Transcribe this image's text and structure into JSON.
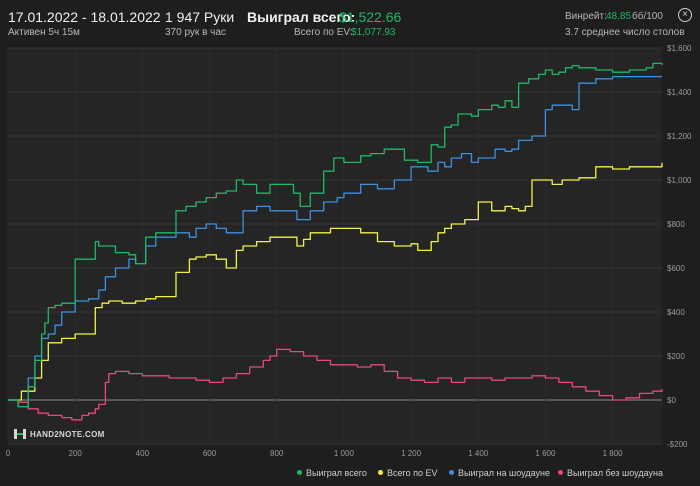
{
  "header": {
    "date_range": "17.01.2022 - 18.01.2022",
    "active": "Активен 5ч 15м",
    "hands": "1 947 Руки",
    "hands_rate": "370 рук в час",
    "won_total_label": "Выиграл всего:",
    "won_total_value": "$1,522.66",
    "ev_label": "Всего по EV:",
    "ev_value": "$1,077.93",
    "winrate_label": "Винрейт:",
    "winrate_value": "48.85",
    "winrate_unit": "бб/100",
    "tables": "3.7 среднее число столов",
    "close_icon": "close-icon"
  },
  "logo": {
    "text": "HAND2NOTE.COM"
  },
  "legend": [
    {
      "label": "Выиграл всего",
      "color": "#1fb866"
    },
    {
      "label": "Всего по EV",
      "color": "#f2f24a"
    },
    {
      "label": "Выиграл на шоудауне",
      "color": "#3d8fe0"
    },
    {
      "label": "Выиграл без шоудауна",
      "color": "#e8487a"
    }
  ],
  "chart_data": {
    "type": "line",
    "xlim": [
      0,
      1947
    ],
    "ylim": [
      -200,
      1600
    ],
    "x_ticks": [
      {
        "v": 0,
        "label": "0"
      },
      {
        "v": 200,
        "label": "200"
      },
      {
        "v": 400,
        "label": "400"
      },
      {
        "v": 600,
        "label": "600"
      },
      {
        "v": 800,
        "label": "800"
      },
      {
        "v": 1000,
        "label": "1 000"
      },
      {
        "v": 1200,
        "label": "1 200"
      },
      {
        "v": 1400,
        "label": "1 400"
      },
      {
        "v": 1600,
        "label": "1 600"
      },
      {
        "v": 1800,
        "label": "1 800"
      }
    ],
    "y_ticks": [
      {
        "v": -200,
        "label": "-$200"
      },
      {
        "v": 0,
        "label": "$0"
      },
      {
        "v": 200,
        "label": "$200"
      },
      {
        "v": 400,
        "label": "$400"
      },
      {
        "v": 600,
        "label": "$600"
      },
      {
        "v": 800,
        "label": "$800"
      },
      {
        "v": 1000,
        "label": "$1,000"
      },
      {
        "v": 1200,
        "label": "$1,200"
      },
      {
        "v": 1400,
        "label": "$1,400"
      },
      {
        "v": 1600,
        "label": "$1,600"
      }
    ],
    "series": [
      {
        "name": "Выиграл всего",
        "color": "#1fb866",
        "x": [
          0,
          30,
          60,
          80,
          100,
          110,
          120,
          140,
          160,
          200,
          240,
          260,
          270,
          290,
          320,
          360,
          380,
          410,
          440,
          500,
          530,
          560,
          590,
          620,
          650,
          680,
          700,
          740,
          780,
          820,
          850,
          870,
          900,
          940,
          970,
          1000,
          1050,
          1080,
          1120,
          1180,
          1220,
          1260,
          1280,
          1300,
          1320,
          1340,
          1380,
          1400,
          1420,
          1440,
          1460,
          1480,
          1500,
          1520,
          1550,
          1580,
          1600,
          1620,
          1640,
          1660,
          1680,
          1700,
          1750,
          1800,
          1850,
          1900,
          1920,
          1947
        ],
        "y": [
          0,
          -30,
          60,
          180,
          300,
          350,
          420,
          430,
          440,
          640,
          640,
          720,
          700,
          700,
          670,
          660,
          620,
          740,
          760,
          860,
          880,
          900,
          920,
          940,
          950,
          1000,
          980,
          940,
          980,
          980,
          940,
          880,
          940,
          1040,
          1100,
          1080,
          1110,
          1120,
          1140,
          1090,
          1080,
          1160,
          1150,
          1240,
          1250,
          1300,
          1290,
          1320,
          1320,
          1340,
          1330,
          1360,
          1330,
          1440,
          1460,
          1480,
          1500,
          1480,
          1490,
          1510,
          1520,
          1510,
          1500,
          1490,
          1500,
          1510,
          1530,
          1523
        ]
      },
      {
        "name": "Всего по EV",
        "color": "#f2f24a",
        "x": [
          0,
          40,
          80,
          100,
          120,
          160,
          200,
          240,
          260,
          280,
          300,
          340,
          380,
          410,
          440,
          500,
          540,
          560,
          590,
          620,
          650,
          680,
          700,
          740,
          780,
          820,
          860,
          880,
          900,
          940,
          960,
          1000,
          1050,
          1100,
          1150,
          1200,
          1220,
          1260,
          1280,
          1300,
          1320,
          1360,
          1400,
          1440,
          1480,
          1500,
          1520,
          1540,
          1560,
          1580,
          1600,
          1620,
          1650,
          1680,
          1700,
          1750,
          1800,
          1850,
          1900,
          1947
        ],
        "y": [
          0,
          40,
          100,
          180,
          260,
          280,
          300,
          300,
          420,
          440,
          450,
          440,
          450,
          460,
          470,
          580,
          640,
          650,
          660,
          640,
          600,
          680,
          700,
          720,
          740,
          740,
          700,
          730,
          760,
          760,
          780,
          780,
          760,
          720,
          700,
          710,
          680,
          720,
          760,
          780,
          800,
          820,
          900,
          860,
          880,
          870,
          860,
          880,
          1000,
          1000,
          1000,
          980,
          1000,
          1000,
          1010,
          1060,
          1050,
          1060,
          1060,
          1078
        ]
      },
      {
        "name": "Выиграл на шоудауне",
        "color": "#3d8fe0",
        "x": [
          0,
          30,
          60,
          80,
          100,
          120,
          140,
          160,
          200,
          240,
          270,
          290,
          320,
          360,
          380,
          410,
          440,
          500,
          540,
          560,
          590,
          620,
          650,
          700,
          740,
          780,
          820,
          860,
          900,
          940,
          980,
          1000,
          1050,
          1100,
          1150,
          1200,
          1250,
          1280,
          1300,
          1320,
          1350,
          1380,
          1400,
          1450,
          1480,
          1500,
          1520,
          1560,
          1600,
          1620,
          1650,
          1680,
          1700,
          1750,
          1800,
          1850,
          1900,
          1947
        ],
        "y": [
          0,
          -30,
          100,
          200,
          280,
          300,
          340,
          400,
          450,
          460,
          500,
          560,
          600,
          640,
          620,
          700,
          740,
          760,
          740,
          780,
          800,
          780,
          760,
          860,
          880,
          860,
          860,
          820,
          860,
          900,
          920,
          940,
          980,
          960,
          1000,
          1060,
          1040,
          1080,
          1060,
          1100,
          1120,
          1080,
          1100,
          1140,
          1130,
          1140,
          1180,
          1200,
          1320,
          1340,
          1340,
          1320,
          1440,
          1460,
          1470,
          1470,
          1470,
          1470
        ]
      },
      {
        "name": "Выиграл без шоудауна",
        "color": "#e8487a",
        "x": [
          0,
          30,
          60,
          90,
          120,
          160,
          190,
          220,
          240,
          260,
          270,
          290,
          300,
          320,
          360,
          400,
          440,
          480,
          520,
          560,
          600,
          640,
          680,
          720,
          760,
          780,
          800,
          840,
          880,
          920,
          960,
          1000,
          1040,
          1080,
          1120,
          1160,
          1200,
          1240,
          1280,
          1320,
          1360,
          1400,
          1440,
          1480,
          1520,
          1560,
          1600,
          1640,
          1680,
          1720,
          1760,
          1800,
          1840,
          1880,
          1920,
          1947
        ],
        "y": [
          0,
          -10,
          -40,
          -60,
          -70,
          -80,
          -90,
          -70,
          -60,
          -40,
          -20,
          80,
          120,
          130,
          120,
          110,
          110,
          100,
          100,
          90,
          80,
          100,
          120,
          150,
          180,
          200,
          230,
          220,
          200,
          180,
          160,
          160,
          150,
          160,
          130,
          100,
          90,
          80,
          100,
          80,
          100,
          100,
          90,
          100,
          100,
          110,
          100,
          80,
          60,
          40,
          20,
          0,
          10,
          30,
          40,
          50
        ]
      }
    ]
  }
}
